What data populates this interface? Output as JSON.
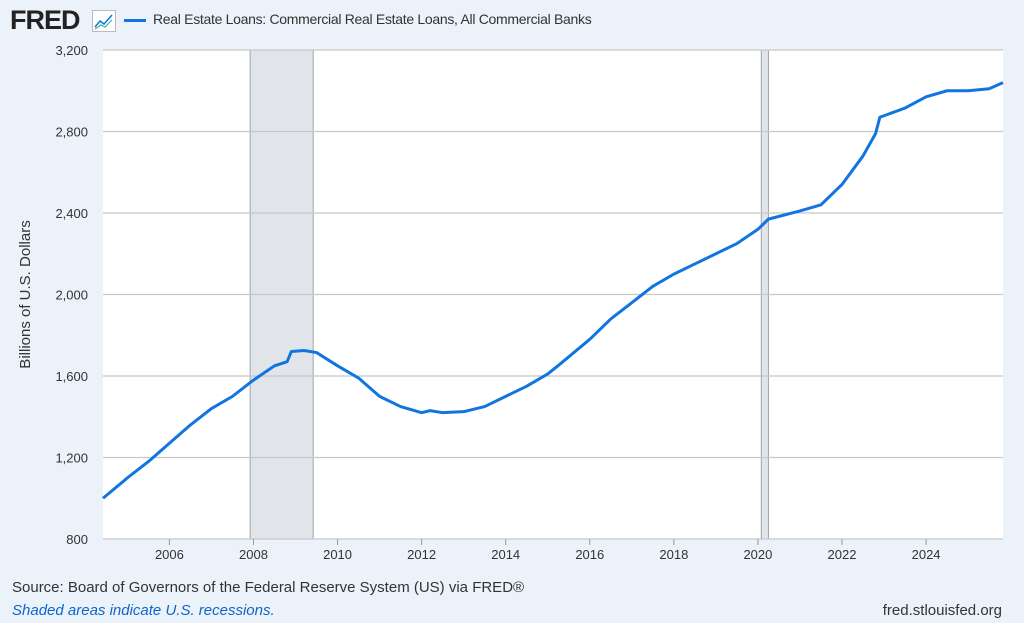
{
  "header": {
    "logo": "FRED",
    "title": "Real Estate Loans: Commercial Real Estate Loans, All Commercial Banks",
    "series_color": "#1075e0"
  },
  "chart_data": {
    "type": "line",
    "title": "Real Estate Loans: Commercial Real Estate Loans, All Commercial Banks",
    "ylabel": "Billions of U.S. Dollars",
    "xlabel": "",
    "ylim": [
      800,
      3200
    ],
    "xlim": [
      2004.42,
      2025.83
    ],
    "yticks": [
      {
        "v": 800,
        "label": "800"
      },
      {
        "v": 1200,
        "label": "1,200"
      },
      {
        "v": 1600,
        "label": "1,600"
      },
      {
        "v": 2000,
        "label": "2,000"
      },
      {
        "v": 2400,
        "label": "2,400"
      },
      {
        "v": 2800,
        "label": "2,800"
      },
      {
        "v": 3200,
        "label": "3,200"
      }
    ],
    "xticks": [
      {
        "v": 2006,
        "label": "2006"
      },
      {
        "v": 2008,
        "label": "2008"
      },
      {
        "v": 2010,
        "label": "2010"
      },
      {
        "v": 2012,
        "label": "2012"
      },
      {
        "v": 2014,
        "label": "2014"
      },
      {
        "v": 2016,
        "label": "2016"
      },
      {
        "v": 2018,
        "label": "2018"
      },
      {
        "v": 2020,
        "label": "2020"
      },
      {
        "v": 2022,
        "label": "2022"
      },
      {
        "v": 2024,
        "label": "2024"
      }
    ],
    "recessions": [
      [
        2007.92,
        2009.42
      ],
      [
        2020.08,
        2020.25
      ]
    ],
    "grid": true,
    "series": [
      {
        "name": "Real Estate Loans: Commercial Real Estate Loans, All Commercial Banks",
        "x": [
          2004.42,
          2005,
          2005.5,
          2006,
          2006.5,
          2007,
          2007.5,
          2008,
          2008.5,
          2008.8,
          2008.9,
          2009.2,
          2009.5,
          2010,
          2010.5,
          2011,
          2011.5,
          2012,
          2012.2,
          2012.5,
          2013,
          2013.5,
          2014,
          2014.5,
          2015,
          2015.3,
          2016,
          2016.5,
          2017,
          2017.5,
          2018,
          2018.5,
          2019,
          2019.5,
          2020,
          2020.25,
          2021,
          2021.5,
          2022,
          2022.5,
          2022.8,
          2022.9,
          2023.3,
          2023.5,
          2024,
          2024.5,
          2025,
          2025.5,
          2025.83
        ],
        "y": [
          1000,
          1100,
          1180,
          1270,
          1360,
          1440,
          1500,
          1580,
          1650,
          1670,
          1720,
          1725,
          1715,
          1650,
          1590,
          1500,
          1450,
          1420,
          1430,
          1420,
          1425,
          1450,
          1500,
          1550,
          1610,
          1660,
          1780,
          1880,
          1960,
          2040,
          2100,
          2150,
          2200,
          2250,
          2320,
          2370,
          2410,
          2440,
          2540,
          2680,
          2790,
          2870,
          2900,
          2915,
          2970,
          3000,
          3000,
          3010,
          3040
        ]
      }
    ]
  },
  "footer": {
    "source": "Source: Board of Governors of the Federal Reserve System (US) via FRED®",
    "note": "Shaded areas indicate U.S. recessions.",
    "url": "fred.stlouisfed.org"
  }
}
